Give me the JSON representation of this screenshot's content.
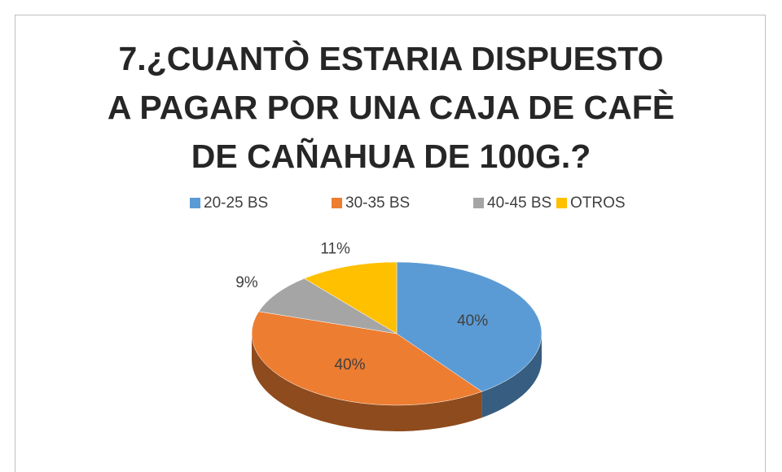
{
  "chart_data": {
    "type": "pie",
    "title": "7.¿CUANTÒ ESTARIA DISPUESTO A PAGAR POR UNA CAJA DE CAFÈ DE CAÑAHUA DE 100G.?",
    "categories": [
      "20-25 BS",
      "30-35 BS",
      "40-45 BS",
      "OTROS"
    ],
    "values": [
      40,
      40,
      9,
      11
    ],
    "value_labels": [
      "40%",
      "40%",
      "9%",
      "11%"
    ],
    "colors": [
      "#5b9bd5",
      "#ed7d31",
      "#a5a5a5",
      "#ffc000"
    ],
    "legend": "top"
  }
}
